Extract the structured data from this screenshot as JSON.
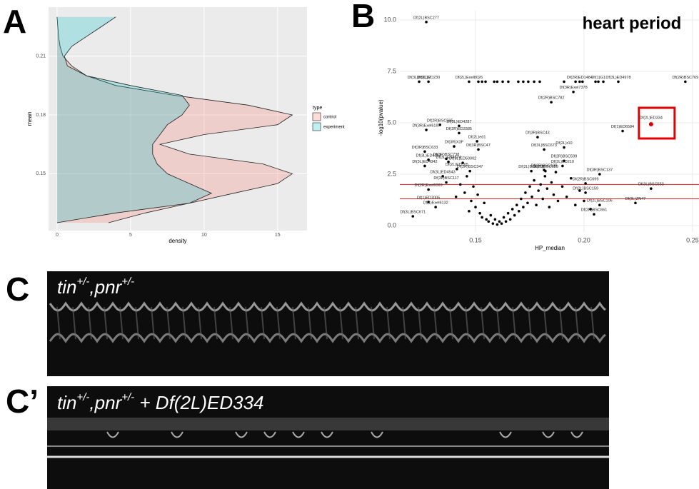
{
  "panels": [
    "A",
    "B",
    "C",
    "C’"
  ],
  "captions": [
    {
      "parts": [
        "tin",
        "+/-",
        ",pnr",
        "+/-"
      ]
    },
    {
      "parts": [
        "tin",
        "+/-",
        ",pnr",
        "+/-",
        " + Df(2L)ED334"
      ]
    }
  ],
  "chart_data": [
    {
      "type": "density",
      "xlabel": "density",
      "ylabel": "mean",
      "legend_title": "type",
      "xlim": [
        -0.58,
        17.0
      ],
      "ylim": [
        0.121,
        0.235
      ],
      "xticks": [
        0,
        5,
        10,
        15
      ],
      "yticks": [
        0.15,
        0.18,
        0.21
      ],
      "grid": true,
      "y": [
        0.125,
        0.13,
        0.135,
        0.14,
        0.145,
        0.15,
        0.155,
        0.16,
        0.165,
        0.17,
        0.175,
        0.18,
        0.185,
        0.19,
        0.195,
        0.2,
        0.205,
        0.21,
        0.215,
        0.22,
        0.225,
        0.23
      ],
      "series": [
        {
          "name": "control",
          "color": "#F8766D",
          "values": [
            3.5,
            6,
            9,
            12,
            15,
            16,
            14,
            9,
            7,
            10,
            15,
            16,
            13,
            8,
            4,
            2,
            1,
            0.4,
            0.2,
            0.1,
            0.05,
            0
          ]
        },
        {
          "name": "experiment",
          "color": "#00BFC4",
          "values": [
            0,
            4,
            9,
            10.5,
            9,
            7.5,
            6.8,
            6.5,
            6.5,
            7,
            7.5,
            8.5,
            9,
            8.5,
            5,
            2,
            0.7,
            0.5,
            1,
            2,
            3,
            4
          ]
        }
      ]
    },
    {
      "type": "scatter",
      "title": "heart period",
      "xlabel": "HP_median",
      "ylabel": "-log10(pvalue)",
      "xlim": [
        0.1151,
        0.253
      ],
      "ylim": [
        -0.3125,
        10.45
      ],
      "xticks": [
        0.15,
        {
          "value": 0.2,
          "label": "0.20"
        },
        0.25
      ],
      "yticks": [
        {
          "value": 0,
          "label": "0.0"
        },
        {
          "value": 2.5,
          "label": "2.5"
        },
        {
          "value": 5,
          "label": "5.0"
        },
        {
          "value": 7.5,
          "label": "7.5"
        },
        {
          "value": 10,
          "label": "10.0"
        }
      ],
      "grid": true,
      "hlines": [
        2.0,
        1.3
      ],
      "hline_color": "#e02020",
      "series": [
        {
          "color": "#000000",
          "x": [
            0.1273,
            0.1283,
            0.124,
            0.147,
            0.198,
            0.2066,
            0.2158,
            0.2467,
            0.1951,
            0.1849,
            0.2178,
            0.1336,
            0.1273,
            0.1424,
            0.1424,
            0.1786,
            0.1401,
            0.1507,
            0.1908,
            0.1266,
            0.1513,
            0.1283,
            0.1365,
            0.1816,
            0.1441,
            0.1908,
            0.1266,
            0.1375,
            0.1901,
            0.1816,
            0.1414,
            0.2072,
            0.1349,
            0.1474,
            0.1757,
            0.1822,
            0.1365,
            0.2007,
            0.1283,
            0.2309,
            0.2007,
            0.1283,
            0.2237,
            0.1316,
            0.2072,
            0.2046,
            0.1211
          ],
          "y": [
            9.9,
            7.0,
            7.0,
            7.0,
            7.0,
            7.0,
            7.0,
            7.0,
            6.5,
            6.0,
            4.6,
            4.9,
            4.65,
            4.85,
            4.5,
            4.3,
            3.85,
            4.1,
            3.8,
            3.6,
            3.7,
            3.2,
            3.25,
            3.7,
            3.05,
            3.15,
            2.9,
            3.1,
            2.9,
            2.7,
            2.75,
            2.5,
            2.4,
            2.65,
            2.65,
            2.65,
            2.1,
            2.05,
            1.75,
            1.8,
            1.6,
            1.15,
            1.1,
            0.9,
            1.0,
            0.55,
            0.45
          ],
          "labels": [
            "Df(2L)BSC277",
            "Df(3L)ED230",
            "Df(3L)BSC27",
            "Df(2L)Exel8026",
            "Df(2R)ED1484",
            "Df(1)G1",
            "Df(3L)ED4978",
            "Df(2R)BSC769",
            "Df(3R)Exel7378",
            "Df(2R)BSC782",
            "Df(1)ED6584",
            "Df(2R)BSC595",
            "Df(3R)Exel6197",
            "Df(3L)ED4287",
            "Df(2R)ED3385",
            "Df(3R)BSC43",
            "Df(3R)X3F",
            "Df(2L)ed1",
            "Df(2L)r10",
            "Df(3R)BSC633",
            "Df(3R)BSC47",
            "Df(3L)ED4293",
            "Df(3R)BSC738",
            "Df(3L)BSC673",
            "Df(3L)ED50002",
            "Df(2R)BSC599",
            "Df(3L)ED4342",
            "Df(3L)ED4674",
            "Df(3L)ED210",
            "Df(2R)BSC199",
            "Df(2L)ED105",
            "Df(3R)BSC137",
            "Df(3L)ED4543",
            "Df(2R)BSC347",
            "Df(2L)BSC278",
            "Df(2L)BSC689",
            "Df(3L)BSC117",
            "Df(2R)BSC699",
            "Df(2R)Exel6069",
            "Df(3L)BSC553",
            "Df(2L)BSC159",
            "Df(1)ED7005",
            "Df(3L)ZN47",
            "Df(1)Exel6132",
            "Df(2L)BSC106",
            "Df(2R)BSC651",
            "Df(3L)BSC671"
          ]
        },
        {
          "color": "#000000",
          "x": [
            0.1513,
            0.1546,
            0.1586,
            0.1625,
            0.1651,
            0.1697,
            0.1743,
            0.1796,
            0.1908,
            0.1961,
            0.1993,
            0.2053,
            0.2089,
            0.153,
            0.16,
            0.172,
            0.177,
            0.148,
            0.15,
            0.152,
            0.153,
            0.155,
            0.156,
            0.157,
            0.158,
            0.159,
            0.16,
            0.161,
            0.162,
            0.163,
            0.164,
            0.165,
            0.166,
            0.167,
            0.168,
            0.169,
            0.17,
            0.171,
            0.172,
            0.173,
            0.174,
            0.175,
            0.176,
            0.177,
            0.178,
            0.179,
            0.18,
            0.181,
            0.182,
            0.183,
            0.184,
            0.185,
            0.186,
            0.187,
            0.188,
            0.19,
            0.192,
            0.194,
            0.196,
            0.198,
            0.2,
            0.203,
            0.145,
            0.143,
            0.146,
            0.141,
            0.149,
            0.151,
            0.154,
            0.147
          ],
          "y": [
            7.0,
            7.0,
            7.0,
            7.0,
            7.0,
            7.0,
            7.0,
            7.0,
            7.0,
            7.0,
            7.0,
            7.0,
            7.0,
            7.0,
            7.0,
            7.0,
            7.0,
            1.2,
            0.9,
            0.6,
            0.4,
            0.3,
            0.2,
            0.5,
            0.1,
            0.3,
            0.05,
            0.2,
            0.1,
            0.4,
            0.2,
            0.6,
            0.3,
            0.8,
            0.5,
            1.0,
            0.7,
            1.3,
            0.9,
            1.6,
            1.1,
            1.9,
            1.4,
            2.2,
            1.0,
            1.7,
            2.0,
            1.3,
            2.4,
            1.8,
            0.9,
            2.1,
            1.5,
            2.6,
            1.2,
            1.9,
            1.4,
            2.3,
            1.0,
            1.7,
            1.2,
            0.8,
            1.6,
            2.0,
            2.4,
            1.4,
            1.9,
            1.5,
            1.1,
            0.7
          ]
        },
        {
          "color": "#e00000",
          "box_color": "#e00000",
          "x": [
            0.2309
          ],
          "y": [
            4.93
          ],
          "labels": [
            "Df(2L)ED334"
          ]
        }
      ]
    }
  ]
}
